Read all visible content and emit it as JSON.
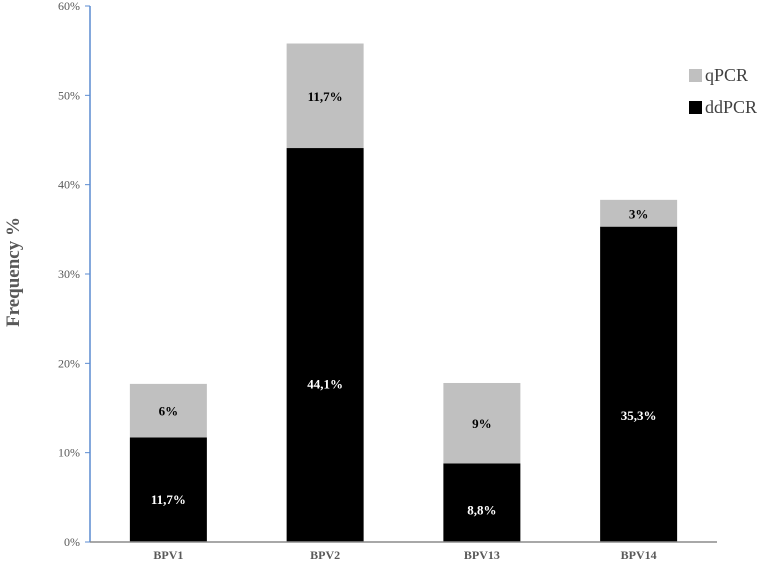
{
  "chart_data": {
    "type": "bar",
    "stacked": true,
    "ylabel": "Frequency %",
    "ylim": [
      0,
      60
    ],
    "yticks": [
      "0%",
      "10%",
      "20%",
      "30%",
      "40%",
      "50%",
      "60%"
    ],
    "grid": false,
    "legend_position": "top-right",
    "categories": [
      "BPV1",
      "BPV2",
      "BPV13",
      "BPV14"
    ],
    "series": [
      {
        "name": "ddPCR",
        "color": "#000000",
        "label_color": "#ffffff",
        "values": [
          11.7,
          44.1,
          8.8,
          35.3
        ],
        "labels": [
          "11,7%",
          "44,1%",
          "8,8%",
          "35,3%"
        ]
      },
      {
        "name": "qPCR",
        "color": "#c0c0c0",
        "label_color": "#000000",
        "values": [
          6,
          11.7,
          9,
          3
        ],
        "labels": [
          "6%",
          "11,7%",
          "9%",
          "3%"
        ]
      }
    ]
  }
}
